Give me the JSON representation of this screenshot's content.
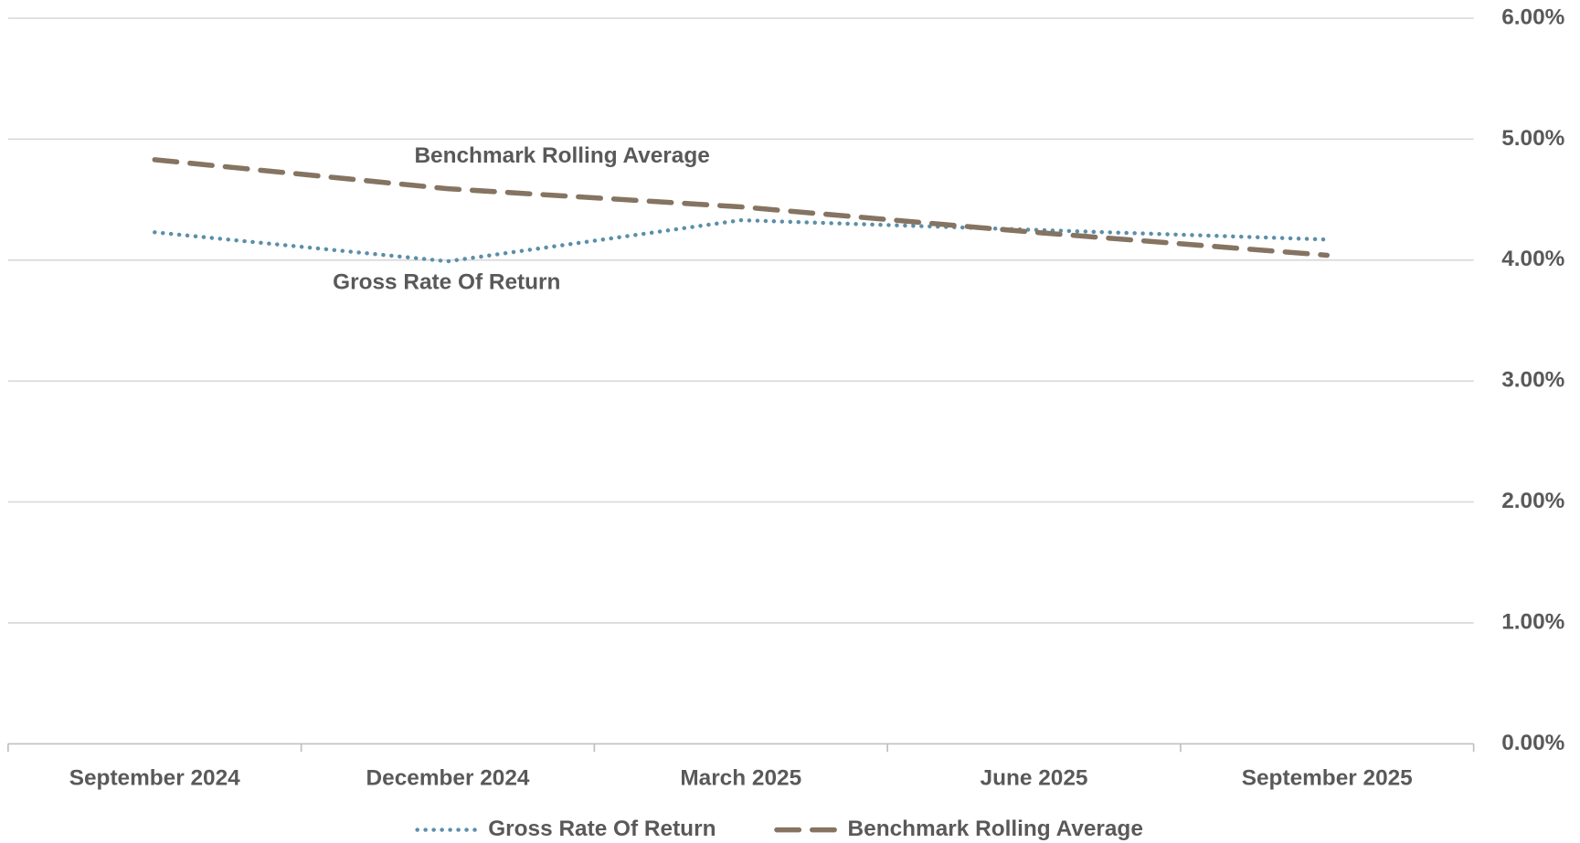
{
  "chart_data": {
    "type": "line",
    "categories": [
      "September 2024",
      "December 2024",
      "March 2025",
      "June 2025",
      "September 2025"
    ],
    "series": [
      {
        "name": "Gross Rate Of Return",
        "color": "#5b8fa8",
        "style": "dotted",
        "values": [
          4.23,
          3.99,
          4.33,
          4.25,
          4.17
        ]
      },
      {
        "name": "Benchmark Rolling Average",
        "color": "#857461",
        "style": "dashed",
        "values": [
          4.83,
          4.59,
          4.44,
          4.23,
          4.04
        ]
      }
    ],
    "annotations": [
      "Benchmark Rolling Average",
      "Gross Rate Of Return"
    ],
    "ylim": [
      0,
      6
    ],
    "yticks": [
      {
        "value": 0,
        "label": "0.00%"
      },
      {
        "value": 1,
        "label": "1.00%"
      },
      {
        "value": 2,
        "label": "2.00%"
      },
      {
        "value": 3,
        "label": "3.00%"
      },
      {
        "value": 4,
        "label": "4.00%"
      },
      {
        "value": 5,
        "label": "5.00%"
      },
      {
        "value": 6,
        "label": "6.00%"
      }
    ],
    "y_axis_side": "right",
    "grid": true,
    "legend": "bottom"
  }
}
